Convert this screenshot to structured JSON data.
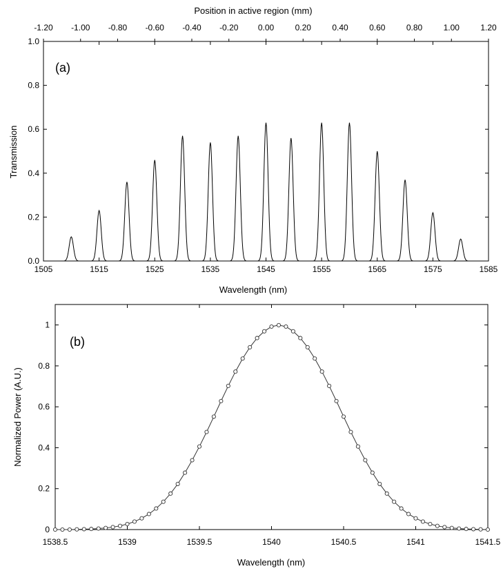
{
  "chart_data": [
    {
      "id": "a",
      "type": "line",
      "panel_label": "(a)",
      "xlabel": "Wavelength (nm)",
      "ylabel": "Transmission",
      "x2label": "Position in active region (mm)",
      "xlim": [
        1505,
        1585
      ],
      "ylim": [
        0,
        1.0
      ],
      "x_ticks": [
        1505,
        1515,
        1525,
        1535,
        1545,
        1555,
        1565,
        1575,
        1585
      ],
      "x_tick_labels": [
        "1505",
        "1515",
        "1525",
        "1535",
        "1545",
        "1555",
        "1565",
        "1575",
        "1585"
      ],
      "y_ticks": [
        0,
        0.2,
        0.4,
        0.6,
        0.8,
        1.0
      ],
      "y_tick_labels": [
        "0.0",
        "0.2",
        "0.4",
        "0.6",
        "0.8",
        "1.0"
      ],
      "x2_ticks": [
        -1.2,
        -1.0,
        -0.8,
        -0.6,
        -0.4,
        -0.2,
        0.0,
        0.2,
        0.4,
        0.6,
        0.8,
        1.0,
        1.2
      ],
      "x2_tick_labels": [
        "-1.20",
        "-1.00",
        "-0.80",
        "-0.60",
        "-0.40",
        "-0.20",
        "0.00",
        "0.20",
        "0.40",
        "0.60",
        "0.80",
        "1.00",
        "1.20"
      ],
      "grid": false,
      "peak_fwhm_nm": 0.9,
      "peaks": [
        {
          "x": 1510,
          "y": 0.11
        },
        {
          "x": 1515,
          "y": 0.23
        },
        {
          "x": 1520,
          "y": 0.36
        },
        {
          "x": 1525,
          "y": 0.46
        },
        {
          "x": 1530,
          "y": 0.57
        },
        {
          "x": 1535,
          "y": 0.54
        },
        {
          "x": 1540,
          "y": 0.57
        },
        {
          "x": 1545,
          "y": 0.63
        },
        {
          "x": 1549.5,
          "y": 0.56
        },
        {
          "x": 1555,
          "y": 0.63
        },
        {
          "x": 1560,
          "y": 0.63
        },
        {
          "x": 1565,
          "y": 0.5
        },
        {
          "x": 1570,
          "y": 0.37
        },
        {
          "x": 1575,
          "y": 0.22
        },
        {
          "x": 1580,
          "y": 0.1
        }
      ]
    },
    {
      "id": "b",
      "type": "line",
      "panel_label": "(b)",
      "xlabel": "Wavelength (nm)",
      "ylabel": "Normalized  Power (A.U.)",
      "xlim": [
        1538.5,
        1541.5
      ],
      "ylim": [
        0,
        1.1
      ],
      "x_ticks": [
        1538.5,
        1539,
        1539.5,
        1540,
        1540.5,
        1541,
        1541.5
      ],
      "x_tick_labels": [
        "1538.5",
        "1539",
        "1539.5",
        "1540",
        "1540.5",
        "1541",
        "1541.5"
      ],
      "y_ticks": [
        0,
        0.2,
        0.4,
        0.6,
        0.8,
        1
      ],
      "y_tick_labels": [
        "0",
        "0.2",
        "0.4",
        "0.6",
        "0.8",
        "1"
      ],
      "grid": false,
      "marker": "open-circle",
      "series": [
        {
          "x": [
            1538.5,
            1538.55,
            1538.6,
            1538.65,
            1538.7,
            1538.75,
            1538.8,
            1538.85,
            1538.9,
            1538.95,
            1539.0,
            1539.05,
            1539.1,
            1539.15,
            1539.2,
            1539.25,
            1539.3,
            1539.35,
            1539.4,
            1539.45,
            1539.5,
            1539.55,
            1539.6,
            1539.65,
            1539.7,
            1539.75,
            1539.8,
            1539.85,
            1539.9,
            1539.95,
            1540.0,
            1540.05,
            1540.1,
            1540.15,
            1540.2,
            1540.25,
            1540.3,
            1540.35,
            1540.4,
            1540.45,
            1540.5,
            1540.55,
            1540.6,
            1540.65,
            1540.7,
            1540.75,
            1540.8,
            1540.85,
            1540.9,
            1540.95,
            1541.0,
            1541.05,
            1541.1,
            1541.15,
            1541.2,
            1541.25,
            1541.3,
            1541.35,
            1541.4,
            1541.45,
            1541.5
          ],
          "y": [
            0.0,
            0.0,
            0.0,
            0.001,
            0.002,
            0.003,
            0.005,
            0.008,
            0.012,
            0.018,
            0.027,
            0.039,
            0.055,
            0.076,
            0.103,
            0.136,
            0.176,
            0.223,
            0.278,
            0.339,
            0.406,
            0.477,
            0.552,
            0.628,
            0.702,
            0.772,
            0.836,
            0.891,
            0.936,
            0.969,
            0.992,
            0.999,
            0.992,
            0.969,
            0.936,
            0.891,
            0.836,
            0.772,
            0.702,
            0.628,
            0.552,
            0.477,
            0.406,
            0.339,
            0.278,
            0.223,
            0.176,
            0.136,
            0.103,
            0.076,
            0.055,
            0.039,
            0.027,
            0.018,
            0.012,
            0.008,
            0.005,
            0.003,
            0.002,
            0.001,
            0.0
          ]
        }
      ]
    }
  ]
}
